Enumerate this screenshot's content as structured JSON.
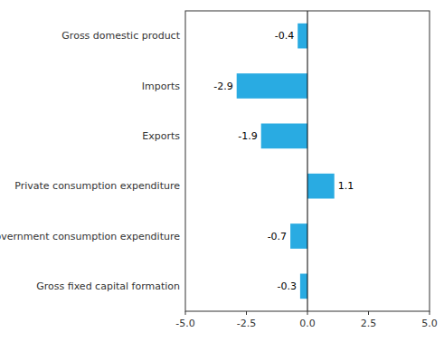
{
  "chart_data": {
    "type": "bar",
    "orientation": "horizontal",
    "categories": [
      "Gross fixed capital formation",
      "Government consumption expenditure",
      "Private consumption expenditure",
      "Exports",
      "Imports",
      "Gross domestic product"
    ],
    "values": [
      -0.3,
      -0.7,
      1.1,
      -1.9,
      -2.9,
      -0.4
    ],
    "color": "#29abe2",
    "xlim": [
      -5.0,
      5.0
    ],
    "xticks": [
      {
        "value": -5.0,
        "label": "-5.0"
      },
      -2.5,
      {
        "value": 0.0,
        "label": "0.0"
      },
      2.5,
      {
        "value": 5.0,
        "label": "5.0"
      }
    ],
    "data_labels": true,
    "grid": false
  }
}
